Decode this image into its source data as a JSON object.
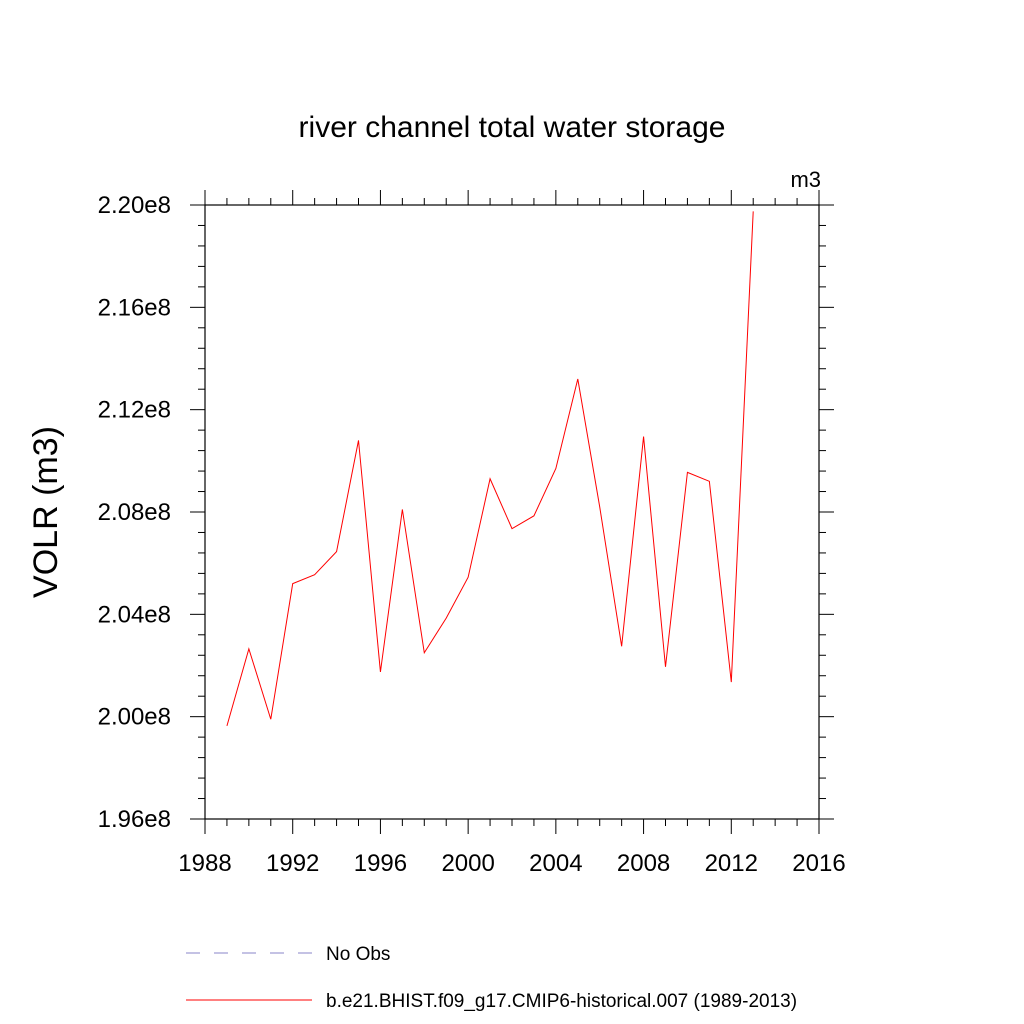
{
  "chart_data": {
    "type": "line",
    "title": "river channel total water storage",
    "units_label": "m3",
    "ylabel": "VOLR  (m3)",
    "xlabel": "",
    "xlim": [
      1988,
      2016
    ],
    "ylim": [
      196000000.0,
      220000000.0
    ],
    "x_ticks": [
      "1988",
      "1992",
      "1996",
      "2000",
      "2004",
      "2008",
      "2012",
      "2016"
    ],
    "y_ticks": [
      "1.96e8",
      "2.00e8",
      "2.04e8",
      "2.08e8",
      "2.12e8",
      "2.16e8",
      "2.20e8"
    ],
    "grid": false,
    "legend_position": "bottom",
    "series": [
      {
        "name": "No Obs",
        "style": "dashed",
        "color": "#8a86c8",
        "x": [],
        "values": []
      },
      {
        "name": "b.e21.BHIST.f09_g17.CMIP6-historical.007 (1989-2013)",
        "style": "solid",
        "color": "#ff0000",
        "x": [
          1989,
          1990,
          1991,
          1992,
          1993,
          1994,
          1995,
          1996,
          1997,
          1998,
          1999,
          2000,
          2001,
          2002,
          2003,
          2004,
          2005,
          2006,
          2007,
          2008,
          2009,
          2010,
          2011,
          2012,
          2013
        ],
        "values": [
          199640000.0,
          202650000.0,
          199900000.0,
          205200000.0,
          205550000.0,
          206450000.0,
          210800000.0,
          201750000.0,
          208100000.0,
          202500000.0,
          203850000.0,
          205450000.0,
          209300000.0,
          207350000.0,
          207850000.0,
          209700000.0,
          213200000.0,
          208200000.0,
          202750000.0,
          210950000.0,
          201950000.0,
          209550000.0,
          209200000.0,
          201350000.0,
          219750000.0
        ]
      }
    ]
  }
}
